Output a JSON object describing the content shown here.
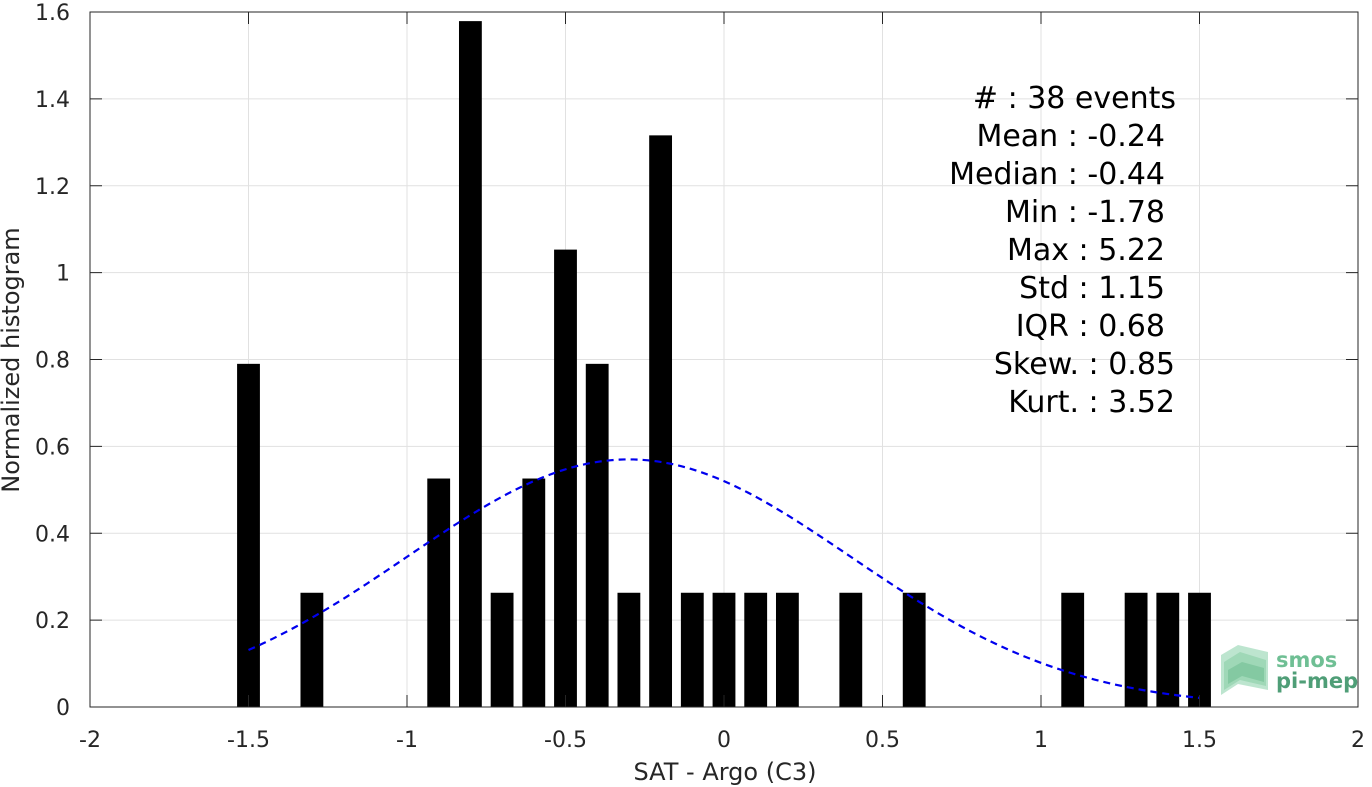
{
  "chart_data": {
    "type": "bar",
    "xlabel": "SAT - Argo (C3)",
    "ylabel": "Normalized histogram",
    "xlim": [
      -2,
      2
    ],
    "ylim": [
      0,
      1.6
    ],
    "xticks": [
      "-2",
      "-1.5",
      "-1",
      "-0.5",
      "0",
      "0.5",
      "1",
      "1.5",
      "2"
    ],
    "yticks": [
      "0",
      "0.2",
      "0.4",
      "0.6",
      "0.8",
      "1",
      "1.2",
      "1.4",
      "1.6"
    ],
    "grid": true,
    "bar_color": "#000000",
    "bin_width": 0.1,
    "bars": [
      {
        "x": -1.5,
        "y": 0.79
      },
      {
        "x": -1.3,
        "y": 0.263
      },
      {
        "x": -0.9,
        "y": 0.526
      },
      {
        "x": -0.8,
        "y": 1.579
      },
      {
        "x": -0.7,
        "y": 0.263
      },
      {
        "x": -0.6,
        "y": 0.526
      },
      {
        "x": -0.5,
        "y": 1.053
      },
      {
        "x": -0.4,
        "y": 0.79
      },
      {
        "x": -0.3,
        "y": 0.263
      },
      {
        "x": -0.2,
        "y": 1.316
      },
      {
        "x": -0.1,
        "y": 0.263
      },
      {
        "x": 0.0,
        "y": 0.263
      },
      {
        "x": 0.1,
        "y": 0.263
      },
      {
        "x": 0.2,
        "y": 0.263
      },
      {
        "x": 0.4,
        "y": 0.263
      },
      {
        "x": 0.6,
        "y": 0.263
      },
      {
        "x": 1.1,
        "y": 0.263
      },
      {
        "x": 1.3,
        "y": 0.263
      },
      {
        "x": 1.4,
        "y": 0.263
      },
      {
        "x": 1.5,
        "y": 0.263
      }
    ],
    "gaussian_fit": {
      "color": "#0000ee",
      "style": "dashed",
      "mean": -0.3,
      "std": 0.7,
      "peak": 0.57,
      "x_range": [
        -1.5,
        1.5
      ]
    },
    "stats_lines": [
      "#  : 38 events",
      "Mean : -0.24",
      "Median : -0.44",
      "Min : -1.78",
      "Max : 5.22",
      "Std : 1.15",
      "IQR : 0.68",
      "Skew. : 0.85",
      "Kurt. : 3.52"
    ]
  },
  "logo": {
    "line1": "smos",
    "line2": "pi-mep",
    "color": "#4caf78"
  }
}
